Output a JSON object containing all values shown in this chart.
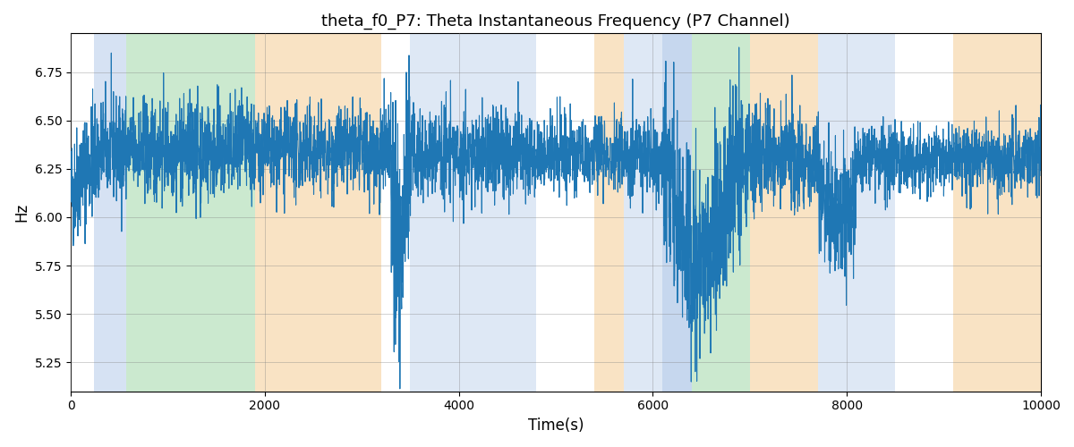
{
  "title": "theta_f0_P7: Theta Instantaneous Frequency (P7 Channel)",
  "xlabel": "Time(s)",
  "ylabel": "Hz",
  "xlim": [
    0,
    10000
  ],
  "ylim": [
    5.1,
    6.95
  ],
  "line_color": "#1f77b4",
  "line_width": 0.8,
  "background_color": "#ffffff",
  "figsize": [
    12,
    5
  ],
  "dpi": 100,
  "background_regions": [
    {
      "xmin": 240,
      "xmax": 570,
      "color": "#aec6e8",
      "alpha": 0.5
    },
    {
      "xmin": 570,
      "xmax": 1900,
      "color": "#98d4a0",
      "alpha": 0.5
    },
    {
      "xmin": 1900,
      "xmax": 3200,
      "color": "#f5c88a",
      "alpha": 0.5
    },
    {
      "xmin": 3200,
      "xmax": 3500,
      "color": "#ffffff",
      "alpha": 1.0
    },
    {
      "xmin": 3500,
      "xmax": 4800,
      "color": "#aec6e8",
      "alpha": 0.4
    },
    {
      "xmin": 4800,
      "xmax": 5400,
      "color": "#ffffff",
      "alpha": 1.0
    },
    {
      "xmin": 5400,
      "xmax": 5700,
      "color": "#f5c88a",
      "alpha": 0.5
    },
    {
      "xmin": 5700,
      "xmax": 6100,
      "color": "#aec6e8",
      "alpha": 0.4
    },
    {
      "xmin": 6100,
      "xmax": 6400,
      "color": "#aec6e8",
      "alpha": 0.7
    },
    {
      "xmin": 6400,
      "xmax": 7000,
      "color": "#98d4a0",
      "alpha": 0.5
    },
    {
      "xmin": 7000,
      "xmax": 7700,
      "color": "#f5c88a",
      "alpha": 0.5
    },
    {
      "xmin": 7700,
      "xmax": 8500,
      "color": "#aec6e8",
      "alpha": 0.4
    },
    {
      "xmin": 8500,
      "xmax": 9100,
      "color": "#ffffff",
      "alpha": 1.0
    },
    {
      "xmin": 9100,
      "xmax": 10000,
      "color": "#f5c88a",
      "alpha": 0.5
    }
  ],
  "seed": 42,
  "n_points": 5000,
  "base_freq": 6.35,
  "noise_std": 0.13
}
